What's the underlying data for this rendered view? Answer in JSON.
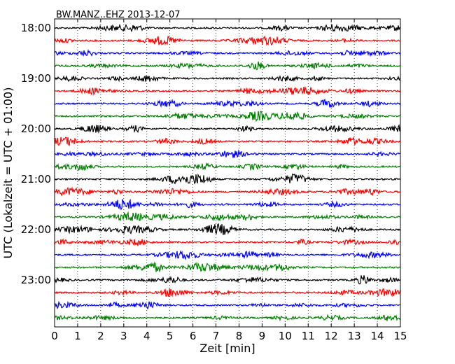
{
  "chart_data": {
    "type": "line",
    "title": "BW.MANZ..EHZ 2013-12-07",
    "xlabel": "Zeit  [min]",
    "ylabel": "UTC (Lokalzeit = UTC + 01:00)",
    "xlim": [
      0,
      15
    ],
    "x_ticks": [
      "0",
      "1",
      "2",
      "3",
      "4",
      "5",
      "6",
      "7",
      "8",
      "9",
      "10",
      "11",
      "12",
      "13",
      "14",
      "15"
    ],
    "y_ticks": [
      "18:00",
      "19:00",
      "20:00",
      "21:00",
      "22:00",
      "23:00"
    ],
    "grid": "vertical dotted",
    "trace_interval_min": 15,
    "trace_count": 24,
    "trace_start": "18:00",
    "colors": [
      "#000000",
      "#ff0000",
      "#0000ff",
      "#008000"
    ]
  }
}
